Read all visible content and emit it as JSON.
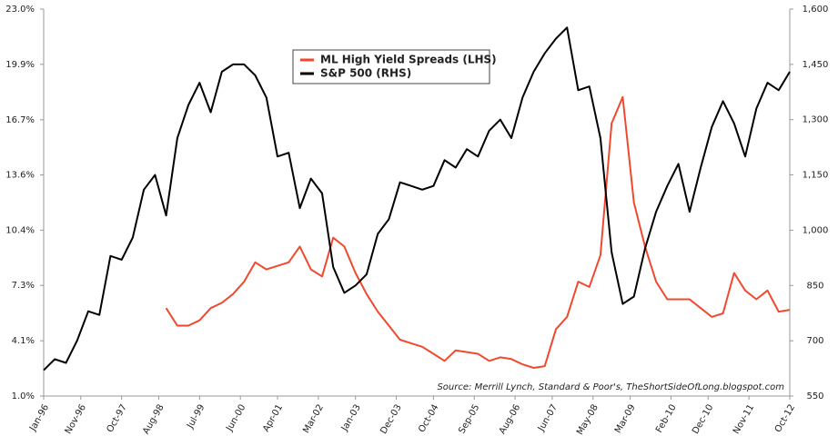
{
  "chart_data": {
    "type": "line",
    "annotation": "Source: Merrill Lynch, Standard & Poor's, TheShortSideOfLong.blogspot.com",
    "x": [
      "Jan-96",
      "Apr-96",
      "Jul-96",
      "Oct-96",
      "Jan-97",
      "Apr-97",
      "Jul-97",
      "Oct-97",
      "Jan-98",
      "Apr-98",
      "Jul-98",
      "Oct-98",
      "Jan-99",
      "Apr-99",
      "Jul-99",
      "Oct-99",
      "Jan-00",
      "Apr-00",
      "Jul-00",
      "Oct-00",
      "Jan-01",
      "Apr-01",
      "Jul-01",
      "Oct-01",
      "Jan-02",
      "Apr-02",
      "Jul-02",
      "Oct-02",
      "Jan-03",
      "Apr-03",
      "Jul-03",
      "Oct-03",
      "Jan-04",
      "Apr-04",
      "Jul-04",
      "Oct-04",
      "Jan-05",
      "Apr-05",
      "Jul-05",
      "Oct-05",
      "Jan-06",
      "Apr-06",
      "Jul-06",
      "Oct-06",
      "Jan-07",
      "Apr-07",
      "Jul-07",
      "Oct-07",
      "Jan-08",
      "Apr-08",
      "Jul-08",
      "Oct-08",
      "Jan-09",
      "Apr-09",
      "Jul-09",
      "Oct-09",
      "Jan-10",
      "Apr-10",
      "Jul-10",
      "Oct-10",
      "Jan-11",
      "Apr-11",
      "Jul-11",
      "Oct-11",
      "Jan-12",
      "Apr-12",
      "Jul-12",
      "Oct-12"
    ],
    "xlim": [
      "Jan-96",
      "Oct-12"
    ],
    "xticks": [
      "Jan-96",
      "Nov-96",
      "Oct-97",
      "Aug-98",
      "Jul-99",
      "Jun-00",
      "Apr-01",
      "Mar-02",
      "Jan-03",
      "Dec-03",
      "Oct-04",
      "Sep-05",
      "Aug-06",
      "Jun-07",
      "May-08",
      "Mar-09",
      "Feb-10",
      "Dec-10",
      "Nov-11",
      "Oct-12"
    ],
    "ylim": [
      1.0,
      23.0
    ],
    "yticks": [
      {
        "value": 1.0,
        "label": "1.0%"
      },
      {
        "value": 4.14,
        "label": "4.1%"
      },
      {
        "value": 7.29,
        "label": "7.3%"
      },
      {
        "value": 10.43,
        "label": "10.4%"
      },
      {
        "value": 13.57,
        "label": "13.6%"
      },
      {
        "value": 16.71,
        "label": "16.7%"
      },
      {
        "value": 19.86,
        "label": "19.9%"
      },
      {
        "value": 23.0,
        "label": "23.0%"
      }
    ],
    "y2lim": [
      550,
      1600
    ],
    "y2ticks": [
      550,
      700,
      850,
      {
        "value": 1000,
        "label": "1,000"
      },
      {
        "value": 1150,
        "label": "1,150"
      },
      {
        "value": 1300,
        "label": "1,300"
      },
      {
        "value": 1450,
        "label": "1,450"
      },
      {
        "value": 1600,
        "label": "1,600"
      }
    ],
    "legend": "upper center",
    "series": [
      {
        "name": "ML High Yield Spreads (LHS)",
        "color": "#f0492e",
        "values": [
          null,
          null,
          null,
          null,
          null,
          null,
          null,
          null,
          null,
          null,
          null,
          6.0,
          5.0,
          5.0,
          5.3,
          6.0,
          6.3,
          6.8,
          7.5,
          8.6,
          8.2,
          8.4,
          8.6,
          9.5,
          8.2,
          7.8,
          10.0,
          9.5,
          8.0,
          6.8,
          5.8,
          5.0,
          4.2,
          4.0,
          3.8,
          3.4,
          3.0,
          3.6,
          3.5,
          3.4,
          3.0,
          3.2,
          3.1,
          2.8,
          2.6,
          2.7,
          4.8,
          5.5,
          7.5,
          7.2,
          9.0,
          16.5,
          18.0,
          12.0,
          9.5,
          7.5,
          6.5,
          6.5,
          6.5,
          6.0,
          5.5,
          5.7,
          8.0,
          7.0,
          6.5,
          7.0,
          5.8,
          5.9
        ]
      },
      {
        "name": "S&P 500 (RHS)",
        "color": "#000000",
        "axis": "y2",
        "values": [
          620,
          650,
          640,
          700,
          780,
          770,
          930,
          920,
          980,
          1110,
          1150,
          1040,
          1250,
          1340,
          1400,
          1320,
          1430,
          1450,
          1450,
          1420,
          1360,
          1200,
          1210,
          1060,
          1140,
          1100,
          900,
          830,
          850,
          880,
          990,
          1030,
          1130,
          1120,
          1110,
          1120,
          1190,
          1170,
          1220,
          1200,
          1270,
          1300,
          1250,
          1360,
          1430,
          1480,
          1520,
          1550,
          1380,
          1390,
          1250,
          940,
          800,
          820,
          950,
          1050,
          1120,
          1180,
          1050,
          1170,
          1280,
          1350,
          1290,
          1200,
          1330,
          1400,
          1380,
          1430
        ]
      }
    ]
  }
}
